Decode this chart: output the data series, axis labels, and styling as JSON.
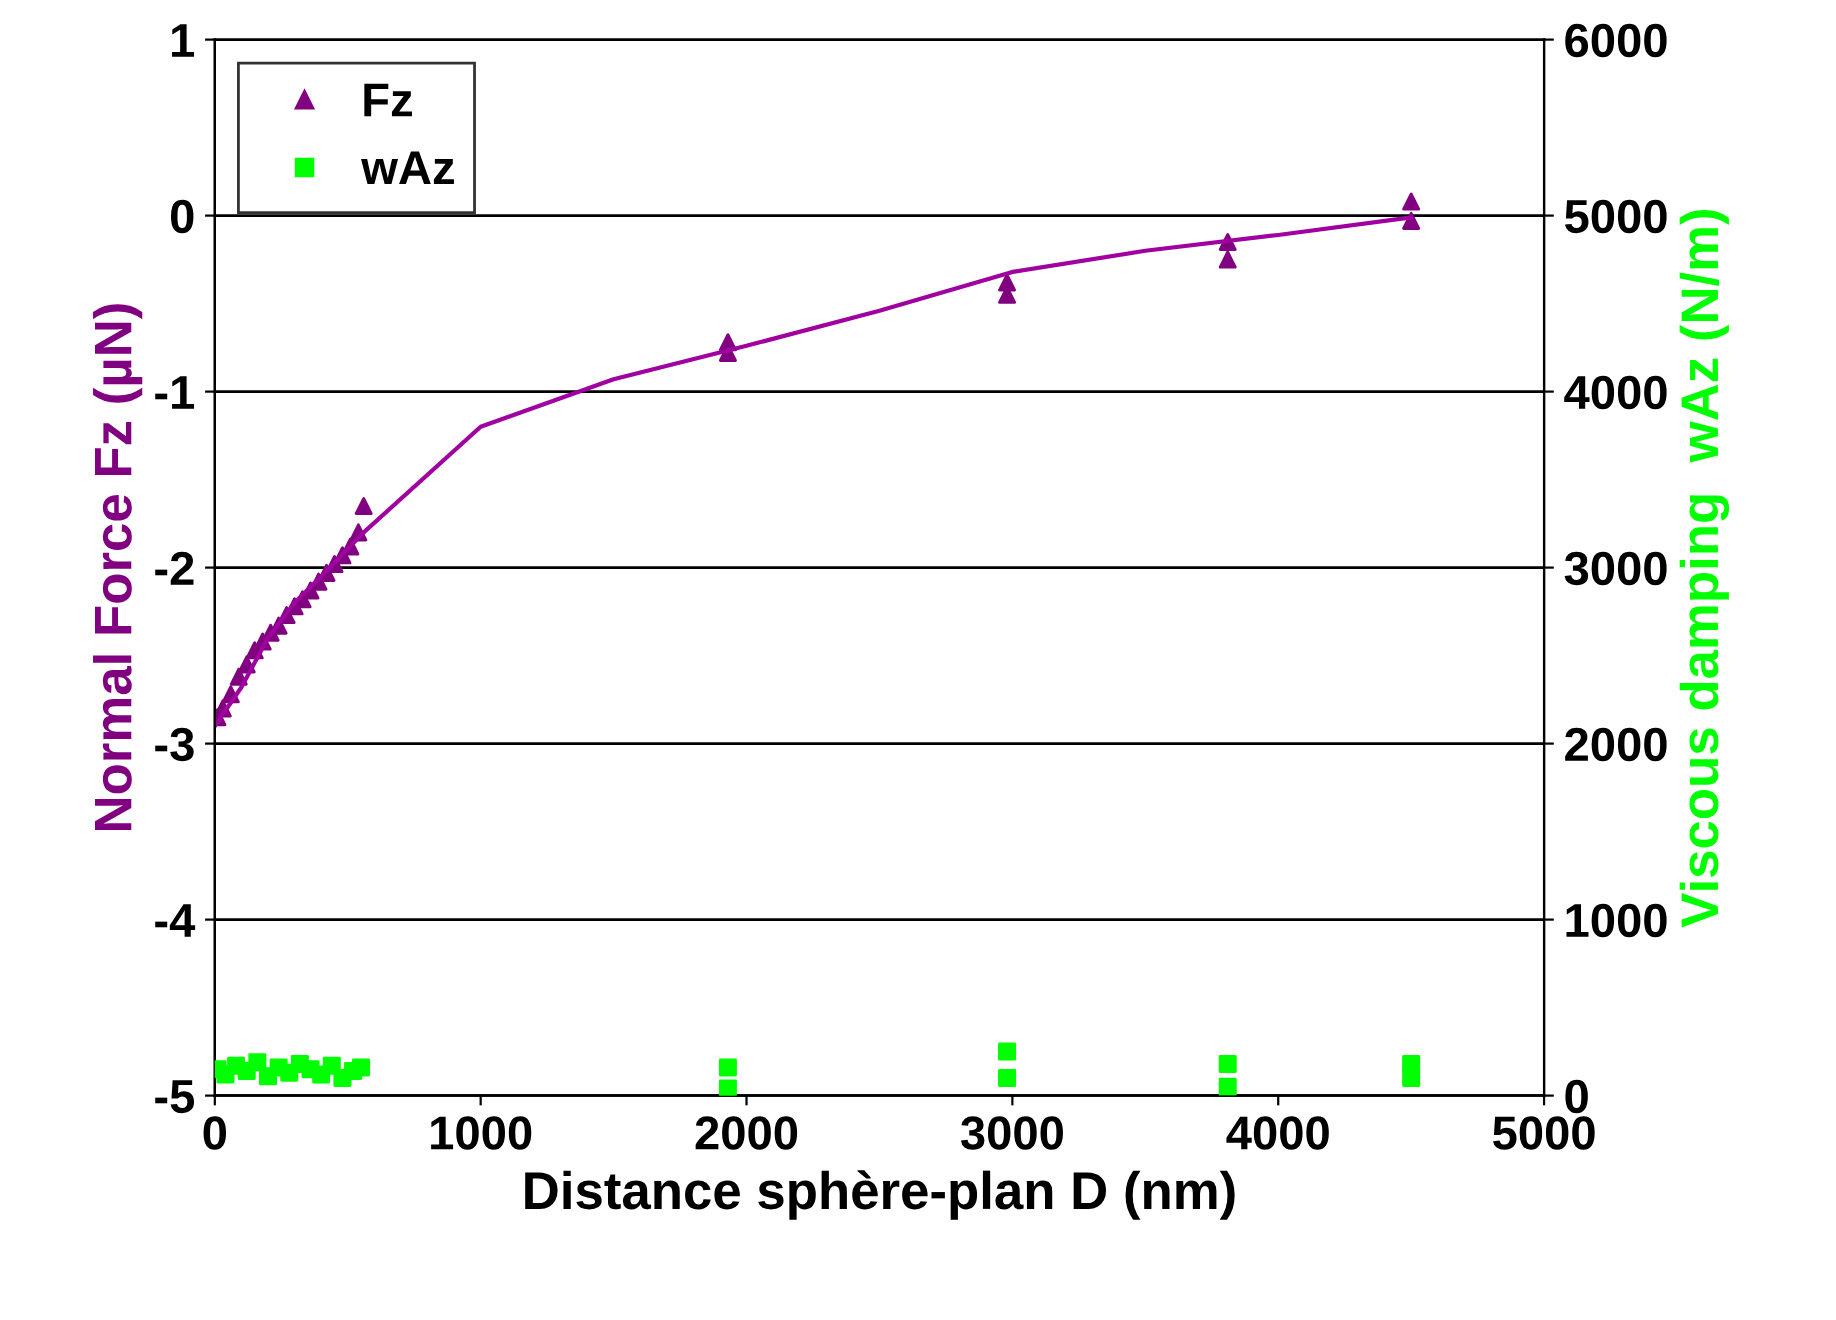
{
  "chart_data": {
    "type": "scatter",
    "xlabel": "Distance sphère-plan D (nm)",
    "ylabel": "Normal Force Fz (µN)",
    "y2label": "Viscous damping  wAz (N/m)",
    "xlim": [
      0,
      5000
    ],
    "xticks": [
      0,
      1000,
      2000,
      3000,
      4000,
      5000
    ],
    "ylim": [
      -5,
      1
    ],
    "yticks": [
      -5,
      -4,
      -3,
      -2,
      -1,
      0,
      1
    ],
    "y2lim": [
      0,
      6000
    ],
    "y2ticks": [
      0,
      1000,
      2000,
      3000,
      4000,
      5000,
      6000
    ],
    "grid": "y",
    "legend": "top left",
    "series": [
      {
        "name": "Fz",
        "color": "#800080",
        "marker": "triangle",
        "x": [
          10,
          30,
          60,
          90,
          120,
          150,
          180,
          210,
          240,
          270,
          300,
          330,
          360,
          390,
          420,
          450,
          480,
          510,
          540,
          560,
          1930,
          1930,
          2980,
          2980,
          3810,
          3810,
          4500,
          4500
        ],
        "values": [
          -2.85,
          -2.8,
          -2.72,
          -2.62,
          -2.55,
          -2.47,
          -2.42,
          -2.37,
          -2.33,
          -2.27,
          -2.22,
          -2.18,
          -2.13,
          -2.08,
          -2.03,
          -1.98,
          -1.93,
          -1.88,
          -1.8,
          -1.65,
          -0.78,
          -0.72,
          -0.45,
          -0.38,
          -0.25,
          -0.15,
          -0.03,
          0.08
        ]
      },
      {
        "type": "line",
        "color": "#a000a0",
        "marker": "none",
        "x": [
          0,
          100,
          200,
          300,
          400,
          560,
          1000,
          1500,
          2000,
          2500,
          3000,
          3500,
          4000,
          4500
        ],
        "values": [
          -2.9,
          -2.68,
          -2.4,
          -2.2,
          -2.05,
          -1.8,
          -1.2,
          -0.93,
          -0.74,
          -0.54,
          -0.32,
          -0.2,
          -0.11,
          -0.01
        ]
      },
      {
        "name": "wAz",
        "color": "#00ff00",
        "marker": "square",
        "axis": "y2",
        "x": [
          10,
          40,
          80,
          120,
          160,
          200,
          240,
          280,
          320,
          360,
          400,
          440,
          480,
          520,
          550,
          1930,
          1930,
          2980,
          2980,
          3810,
          3810,
          4500,
          4500
        ],
        "values": [
          150,
          120,
          170,
          140,
          190,
          110,
          160,
          130,
          180,
          150,
          120,
          170,
          100,
          140,
          160,
          40,
          160,
          100,
          250,
          50,
          180,
          100,
          180
        ]
      }
    ]
  }
}
